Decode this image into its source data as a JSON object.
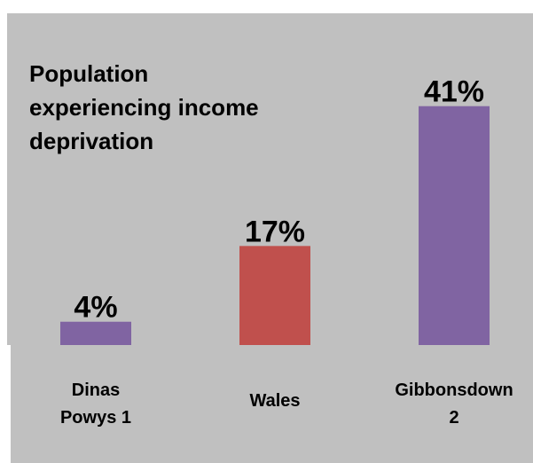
{
  "chart_data": {
    "type": "bar",
    "title": "Population\nexperiencing income\ndeprivation",
    "categories": [
      "Dinas\nPowys 1",
      "Wales",
      "Gibbonsdown\n2"
    ],
    "values": [
      4,
      17,
      41
    ],
    "data_labels": [
      "4%",
      "17%",
      "41%"
    ],
    "unit": "%",
    "ylim": [
      0,
      44
    ],
    "grid": false,
    "legend": "none",
    "colors": [
      "#8064a2",
      "#c0504d",
      "#8064a2"
    ],
    "background": "#c0c0c0"
  }
}
